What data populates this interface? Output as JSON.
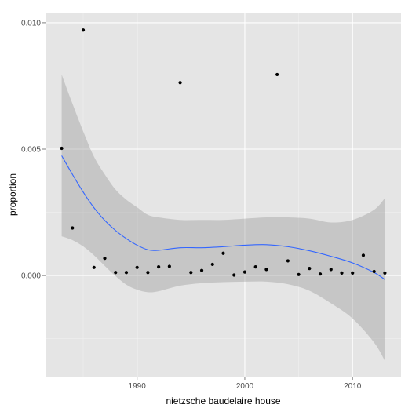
{
  "chart_data": {
    "type": "scatter",
    "xlabel": "nietzsche baudelaire house",
    "ylabel": "proportion",
    "xlim": [
      1981.5,
      2014.5
    ],
    "ylim": [
      -0.004,
      0.0104
    ],
    "x_ticks": [
      1990,
      2000,
      2010
    ],
    "x_tick_labels": [
      "1990",
      "2000",
      "2010"
    ],
    "y_ticks": [
      0.0,
      0.005,
      0.01
    ],
    "y_tick_labels": [
      "0.000",
      "0.005",
      "0.010"
    ],
    "grid": true,
    "legend": "none",
    "colors": {
      "panel": "#e5e5e5",
      "grid_major": "#ffffff",
      "grid_minor": "#f2f2f2",
      "points": "#000000",
      "smooth_line": "#3366ff",
      "confidence_band": "#999999"
    },
    "points": [
      {
        "x": 1983,
        "y": 0.00503
      },
      {
        "x": 1984,
        "y": 0.00188
      },
      {
        "x": 1985,
        "y": 0.00971
      },
      {
        "x": 1986,
        "y": 0.00032
      },
      {
        "x": 1987,
        "y": 0.00068
      },
      {
        "x": 1988,
        "y": 0.00012
      },
      {
        "x": 1989,
        "y": 0.00012
      },
      {
        "x": 1990,
        "y": 0.00032
      },
      {
        "x": 1991,
        "y": 0.00012
      },
      {
        "x": 1992,
        "y": 0.00034
      },
      {
        "x": 1993,
        "y": 0.00036
      },
      {
        "x": 1994,
        "y": 0.00763
      },
      {
        "x": 1995,
        "y": 0.00012
      },
      {
        "x": 1996,
        "y": 0.0002
      },
      {
        "x": 1997,
        "y": 0.00044
      },
      {
        "x": 1998,
        "y": 0.00088
      },
      {
        "x": 1999,
        "y": 2e-05
      },
      {
        "x": 2000,
        "y": 0.00014
      },
      {
        "x": 2001,
        "y": 0.00034
      },
      {
        "x": 2002,
        "y": 0.00024
      },
      {
        "x": 2003,
        "y": 0.00795
      },
      {
        "x": 2004,
        "y": 0.00058
      },
      {
        "x": 2005,
        "y": 4e-05
      },
      {
        "x": 2006,
        "y": 0.00028
      },
      {
        "x": 2007,
        "y": 6e-05
      },
      {
        "x": 2008,
        "y": 0.00024
      },
      {
        "x": 2009,
        "y": 0.0001
      },
      {
        "x": 2010,
        "y": 0.0001
      },
      {
        "x": 2011,
        "y": 0.0008
      },
      {
        "x": 2012,
        "y": 0.00016
      },
      {
        "x": 2013,
        "y": 0.0001
      }
    ],
    "smooth": {
      "method": "loess",
      "x": [
        1983,
        1984,
        1985,
        1986,
        1987,
        1988,
        1989,
        1990,
        1991,
        1992,
        1994,
        1996,
        1998,
        2000,
        2002,
        2004,
        2006,
        2008,
        2010,
        2012,
        2013
      ],
      "y": [
        0.00474,
        0.004,
        0.0033,
        0.00268,
        0.00218,
        0.00178,
        0.00146,
        0.0012,
        0.00102,
        0.001,
        0.0011,
        0.0011,
        0.00114,
        0.0012,
        0.00122,
        0.00114,
        0.00098,
        0.00076,
        0.0005,
        0.00012,
        -0.00016
      ],
      "lower": [
        0.00155,
        0.0014,
        0.00115,
        0.0008,
        0.00038,
        -2e-05,
        -0.00036,
        -0.00056,
        -0.00066,
        -0.00062,
        -0.0004,
        -0.0003,
        -0.00026,
        -0.00024,
        -0.00024,
        -0.00034,
        -0.0006,
        -0.0011,
        -0.0017,
        -0.00265,
        -0.00337
      ],
      "upper": [
        0.00795,
        0.0068,
        0.0057,
        0.0047,
        0.004,
        0.0034,
        0.003,
        0.0027,
        0.0024,
        0.0023,
        0.0022,
        0.0022,
        0.0022,
        0.00225,
        0.0023,
        0.0023,
        0.00225,
        0.0021,
        0.0022,
        0.0026,
        0.00306
      ]
    }
  }
}
